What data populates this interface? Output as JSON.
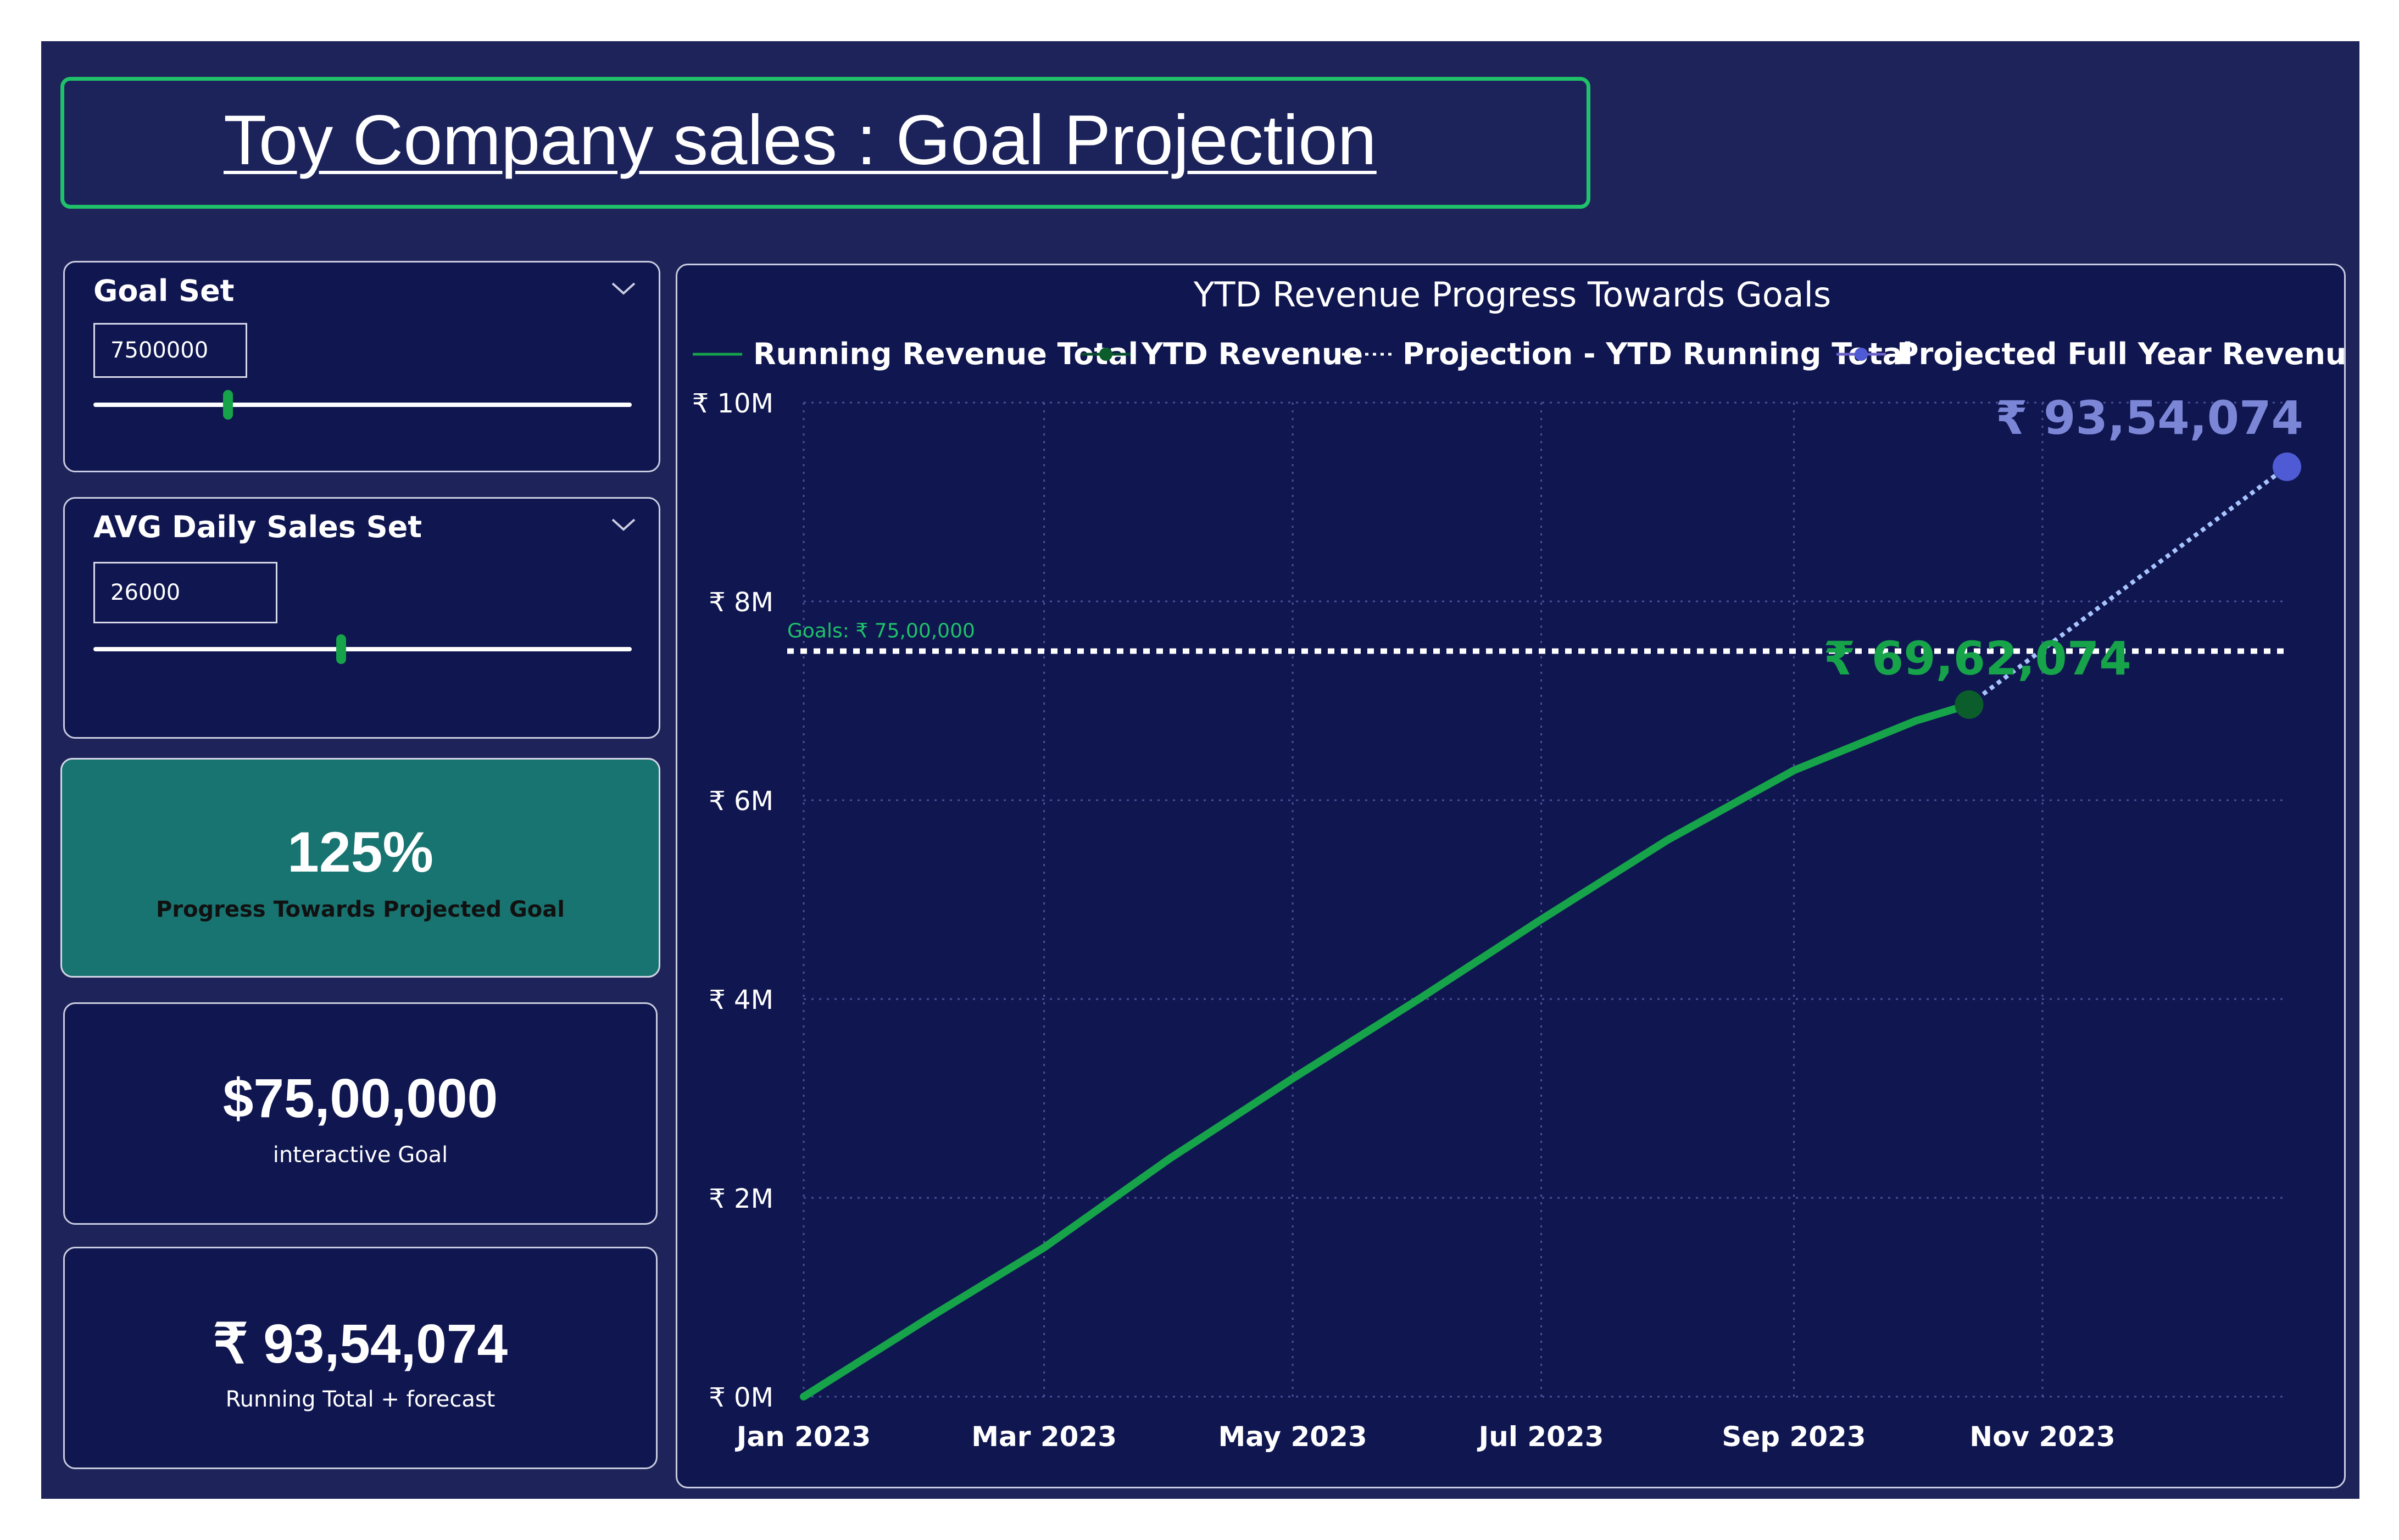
{
  "page_title": "Toy Company sales : Goal Projection",
  "colors": {
    "background": "#1e2459",
    "card": "#0f1650",
    "accent_green": "#16a34a",
    "progress_card": "#187471",
    "projection": "#a8c4ff",
    "projected_point": "#4f5bd5",
    "goal_line": "#ffffff"
  },
  "goal_slicer": {
    "title": "Goal Set",
    "value": "7500000",
    "icon": "chevron-down-icon",
    "slider_level": 0.25
  },
  "daily_slicer": {
    "title": "AVG Daily Sales Set",
    "value": "26000",
    "icon": "chevron-down-icon",
    "slider_level": 0.46
  },
  "kpis": {
    "progress": {
      "value": "125%",
      "label": "Progress Towards Projected Goal"
    },
    "goal": {
      "value": "$75,00,000",
      "label": "interactive Goal"
    },
    "forecast": {
      "value": "₹ 93,54,074",
      "label": "Running Total + forecast"
    }
  },
  "chart_data": {
    "type": "line",
    "title": "YTD Revenue Progress Towards Goals",
    "legend": [
      "Running Revenue Total",
      "YTD Revenue",
      "Projection - YTD Running Total",
      "Projected Full Year Revenue"
    ],
    "legend_position": "top",
    "x_ticks": [
      "Jan 2023",
      "Mar 2023",
      "May 2023",
      "Jul 2023",
      "Sep 2023",
      "Nov 2023"
    ],
    "x_range": [
      "2023-01-01",
      "2023-12-31"
    ],
    "y_ticks": [
      "₹ 0M",
      "₹ 2M",
      "₹ 4M",
      "₹ 6M",
      "₹ 8M",
      "₹ 10M"
    ],
    "ylim": [
      0,
      10000000
    ],
    "grid": true,
    "running_total": {
      "dates": [
        "2023-01-01",
        "2023-02-01",
        "2023-03-01",
        "2023-04-01",
        "2023-05-01",
        "2023-06-01",
        "2023-07-01",
        "2023-08-01",
        "2023-09-01",
        "2023-10-01",
        "2023-10-14"
      ],
      "values": [
        0,
        800000,
        1500000,
        2400000,
        3200000,
        4000000,
        4800000,
        5600000,
        6300000,
        6800000,
        6962074
      ]
    },
    "ytd_revenue": {
      "date": "2023-10-14",
      "value": 6962074,
      "label": "₹ 69,62,074"
    },
    "projection": {
      "dates": [
        "2023-10-14",
        "2023-12-31"
      ],
      "values": [
        6962074,
        9354074
      ]
    },
    "projected_full_year": {
      "date": "2023-12-31",
      "value": 9354074,
      "label": "₹ 93,54,074"
    },
    "goal": {
      "value": 7500000,
      "label": "Goals: ₹ 75,00,000"
    }
  }
}
